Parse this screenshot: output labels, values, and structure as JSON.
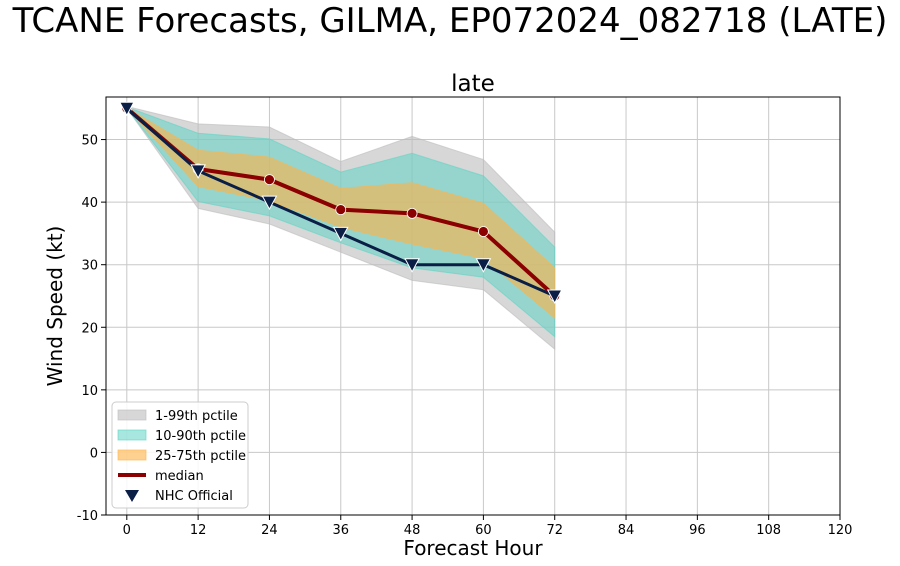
{
  "chart_data": {
    "type": "line",
    "title": "TCANE Forecasts, GILMA, EP072024_082718 (LATE)",
    "subtitle": "late",
    "xlabel": "Forecast Hour",
    "ylabel": "Wind Speed (kt)",
    "xlim": [
      -3.5,
      120
    ],
    "ylim": [
      -10,
      56.8
    ],
    "xticks": [
      0,
      12,
      24,
      36,
      48,
      60,
      72,
      84,
      96,
      108,
      120
    ],
    "yticks": [
      -10,
      0,
      10,
      20,
      30,
      40,
      50
    ],
    "grid": true,
    "legend_position": "lower-left",
    "x": [
      0,
      12,
      24,
      36,
      48,
      60,
      72
    ],
    "bands": [
      {
        "name": "1-99th pctile",
        "color": "#bdbdbd",
        "lower": [
          55,
          39,
          36.5,
          32,
          27.5,
          26,
          16.5
        ],
        "upper": [
          55.3,
          52.5,
          52,
          46.5,
          50.5,
          46.8,
          35.2
        ]
      },
      {
        "name": "10-90th pctile",
        "color": "#5fd3c4",
        "lower": [
          55,
          40.1,
          37.8,
          33.5,
          29.5,
          28,
          18.5
        ],
        "upper": [
          55.2,
          51,
          50.1,
          44.8,
          47.8,
          44.2,
          32.8
        ]
      },
      {
        "name": "25-75th pctile",
        "color": "#ffb347",
        "lower": [
          55,
          42.5,
          40.2,
          36,
          33.3,
          31,
          21.5
        ],
        "upper": [
          55.1,
          48.3,
          47.2,
          42.2,
          43.1,
          39.8,
          29.5
        ]
      }
    ],
    "series": [
      {
        "name": "median",
        "color": "#8b0000",
        "values": [
          55,
          45.3,
          43.6,
          38.8,
          38.2,
          35.3,
          25
        ]
      },
      {
        "name": "NHC Official",
        "color": "#0a1e46",
        "values": [
          55,
          45,
          40,
          35,
          30,
          30,
          25
        ]
      }
    ]
  }
}
